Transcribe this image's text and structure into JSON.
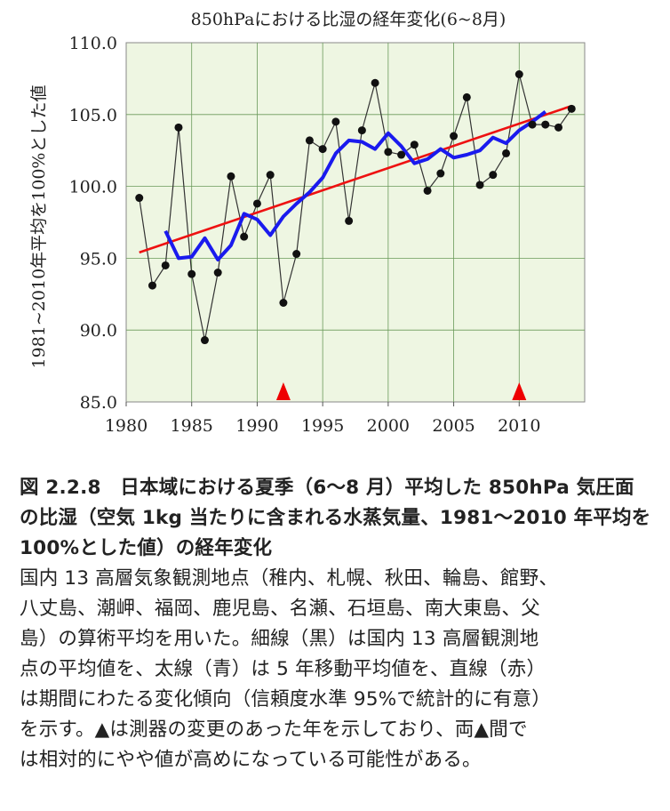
{
  "chart_data": {
    "type": "line",
    "title": "850hPaにおける比湿の経年変化(6~8月)",
    "ylabel": "1981~2010年平均を100%とした値",
    "xlabel": "",
    "xlim": [
      1980,
      2015
    ],
    "ylim": [
      85.0,
      110.0
    ],
    "x_ticks": [
      "1980",
      "1985",
      "1990",
      "1995",
      "2000",
      "2005",
      "2010"
    ],
    "x_tick_values": [
      1980,
      1985,
      1990,
      1995,
      2000,
      2005,
      2010
    ],
    "y_ticks": [
      "85.0",
      "90.0",
      "95.0",
      "100.0",
      "105.0",
      "110.0"
    ],
    "y_tick_values": [
      85,
      90,
      95,
      100,
      105,
      110
    ],
    "grid": true,
    "plot_background": "#eef6e2",
    "grid_color": "#6a9a5a",
    "series": [
      {
        "color": "#333333",
        "style": "thin line with markers",
        "x": [
          1981,
          1982,
          1983,
          1984,
          1985,
          1986,
          1987,
          1988,
          1989,
          1990,
          1991,
          1992,
          1993,
          1994,
          1995,
          1996,
          1997,
          1998,
          1999,
          2000,
          2001,
          2002,
          2003,
          2004,
          2005,
          2006,
          2007,
          2008,
          2009,
          2010,
          2011,
          2012,
          2013,
          2014
        ],
        "y": [
          99.2,
          93.1,
          94.5,
          104.1,
          93.9,
          89.3,
          94.0,
          100.7,
          96.5,
          98.8,
          100.8,
          91.9,
          95.3,
          103.2,
          102.6,
          104.5,
          97.6,
          103.9,
          107.2,
          102.4,
          102.2,
          102.9,
          99.7,
          100.9,
          103.5,
          106.2,
          100.1,
          100.8,
          102.3,
          107.8,
          104.3,
          104.3,
          104.1,
          105.4
        ]
      },
      {
        "color": "#1a1aee",
        "style": "thick line (5-year moving average)",
        "x": [
          1983,
          1984,
          1985,
          1986,
          1987,
          1988,
          1989,
          1990,
          1991,
          1992,
          1993,
          1994,
          1995,
          1996,
          1997,
          1998,
          1999,
          2000,
          2001,
          2002,
          2003,
          2004,
          2005,
          2006,
          2007,
          2008,
          2009,
          2010,
          2011,
          2012
        ],
        "y": [
          96.9,
          95.0,
          95.1,
          96.4,
          94.9,
          95.9,
          98.1,
          97.7,
          96.6,
          97.9,
          98.8,
          99.6,
          100.6,
          102.3,
          103.2,
          103.1,
          102.6,
          103.7,
          102.8,
          101.6,
          101.9,
          102.6,
          102.0,
          102.2,
          102.5,
          103.4,
          103.0,
          103.9,
          104.5,
          105.2
        ]
      },
      {
        "color": "#ee1111",
        "style": "straight trend line",
        "x": [
          1981,
          2014
        ],
        "y": [
          95.4,
          105.6
        ]
      }
    ],
    "markers": {
      "symbol": "▲",
      "color": "#ee0000",
      "years": [
        1992,
        2010
      ]
    }
  },
  "caption": {
    "title": "図 2.2.8　日本域における夏季（6～8 月）平均した 850hPa 気圧面の比湿（空気 1kg 当たりに含まれる水蒸気量、1981～2010 年平均を 100%とした値）の経年変化",
    "body_lines": [
      "国内 13 高層気象観測地点（稚内、札幌、秋田、輪島、館野、",
      "八丈島、潮岬、福岡、鹿児島、名瀬、石垣島、南大東島、父",
      "島）の算術平均を用いた。細線（黒）は国内 13 高層観測地",
      "点の平均値を、太線（青）は 5 年移動平均値を、直線（赤）",
      "は期間にわたる変化傾向（信頼度水準 95%で統計的に有意）",
      "を示す。▲は測器の変更のあった年を示しており、両▲間で",
      "は相対的にやや値が高めになっている可能性がある。"
    ]
  }
}
